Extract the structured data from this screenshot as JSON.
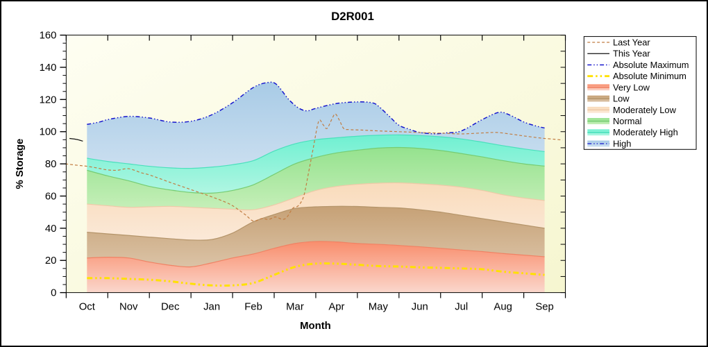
{
  "title": "D2R001",
  "y_axis": {
    "label": "% Storage",
    "ticks": [
      0,
      20,
      40,
      60,
      80,
      100,
      120,
      140,
      160
    ],
    "min": 0,
    "max": 160,
    "minor_step": 5,
    "right_minor_step": 10
  },
  "x_axis": {
    "label": "Month",
    "categories": [
      "Oct",
      "Nov",
      "Dec",
      "Jan",
      "Feb",
      "Mar",
      "Apr",
      "May",
      "Jun",
      "Jul",
      "Aug",
      "Sep"
    ]
  },
  "legend": {
    "items": [
      {
        "label": "Last Year",
        "type": "line",
        "color": "#C17C41",
        "width": 1.2,
        "dash": "4 3"
      },
      {
        "label": "This Year",
        "type": "line",
        "color": "#111111",
        "width": 1.3,
        "dash": ""
      },
      {
        "label": "Absolute Maximum",
        "type": "line",
        "color": "#1414CD",
        "width": 1.5,
        "dash": "6 3 1.5 3 1.5 3"
      },
      {
        "label": "Absolute Minimum",
        "type": "line",
        "color": "#FFE100",
        "width": 3,
        "dash": "8 4 2.5 4 2.5 4"
      },
      {
        "label": "Very Low",
        "type": "band",
        "line_color": "#F08264",
        "fill_top": "#F98D6C",
        "fill_bottom": "#FAD7CC"
      },
      {
        "label": "Low",
        "type": "band",
        "line_color": "#B49469",
        "fill_top": "#C6A176",
        "fill_bottom": "#DBC3A6"
      },
      {
        "label": "Moderately Low",
        "type": "band",
        "line_color": "#EECAA8",
        "fill_top": "#F9DBBB",
        "fill_bottom": "#FBE9D8"
      },
      {
        "label": "Normal",
        "type": "band",
        "line_color": "#76CC72",
        "fill_top": "#95E28E",
        "fill_bottom": "#C6EFB9"
      },
      {
        "label": "Moderately High",
        "type": "band",
        "line_color": "#4AE0BC",
        "fill_top": "#6FF0D1",
        "fill_bottom": "#B0F6E2"
      },
      {
        "label": "High",
        "type": "band-line",
        "line_color": "#1414CD",
        "dash": "6 3 1.5 3 1.5 3",
        "fill_top": "#A8CBE6",
        "fill_bottom": "#CBDFF0"
      }
    ]
  },
  "chart_data": {
    "type": "area",
    "title": "D2R001",
    "xlabel": "Month",
    "ylabel": "% Storage",
    "ylim": [
      0,
      160
    ],
    "x_unit": "month-index, 0=Oct ... 11=Sep (fractions = within-month positions)",
    "grid": false,
    "legend_position": "outside-right",
    "plot_background": {
      "gradient_from": "#FEFEF2",
      "gradient_to": "#F6F6D0"
    },
    "bands": [
      {
        "name": "Very Low",
        "line_color": "#F08264",
        "fill_top": "#F98D6C",
        "fill_bottom": "#FAD7CC",
        "top": [
          [
            0,
            21.5
          ],
          [
            0.5,
            22
          ],
          [
            1,
            21.5
          ],
          [
            1.5,
            19
          ],
          [
            2,
            17
          ],
          [
            2.5,
            16
          ],
          [
            3,
            18.5
          ],
          [
            3.5,
            21.5
          ],
          [
            4,
            24
          ],
          [
            4.5,
            27.5
          ],
          [
            5,
            30.5
          ],
          [
            5.5,
            31.8
          ],
          [
            6,
            31.5
          ],
          [
            6.5,
            30.5
          ],
          [
            7,
            30
          ],
          [
            7.5,
            29.3
          ],
          [
            8,
            28.5
          ],
          [
            8.5,
            27.5
          ],
          [
            9,
            26.5
          ],
          [
            9.5,
            25.5
          ],
          [
            10,
            24.3
          ],
          [
            10.5,
            23.3
          ],
          [
            11,
            22.3
          ]
        ]
      },
      {
        "name": "Low",
        "line_color": "#B49469",
        "fill_top": "#C6A176",
        "fill_bottom": "#DBC3A6",
        "top": [
          [
            0,
            37.5
          ],
          [
            0.5,
            36.5
          ],
          [
            1,
            35.5
          ],
          [
            1.5,
            34.5
          ],
          [
            2,
            33.5
          ],
          [
            2.5,
            32.7
          ],
          [
            3,
            33
          ],
          [
            3.5,
            37
          ],
          [
            4,
            44
          ],
          [
            4.5,
            48.5
          ],
          [
            5,
            52.3
          ],
          [
            5.5,
            53.3
          ],
          [
            6,
            53.6
          ],
          [
            6.5,
            53.5
          ],
          [
            7,
            53
          ],
          [
            7.5,
            52.6
          ],
          [
            8,
            51.5
          ],
          [
            8.5,
            50
          ],
          [
            9,
            48
          ],
          [
            9.5,
            46
          ],
          [
            10,
            44
          ],
          [
            10.5,
            42
          ],
          [
            11,
            40
          ]
        ]
      },
      {
        "name": "Moderately Low",
        "line_color": "#EECAA8",
        "fill_top": "#F9DBBB",
        "fill_bottom": "#FBE9D8",
        "top": [
          [
            0,
            55
          ],
          [
            0.5,
            54
          ],
          [
            1,
            53
          ],
          [
            1.5,
            53.3
          ],
          [
            2,
            53.6
          ],
          [
            2.5,
            53
          ],
          [
            3,
            52.4
          ],
          [
            3.5,
            51.8
          ],
          [
            4,
            51.5
          ],
          [
            4.5,
            54.5
          ],
          [
            5,
            59
          ],
          [
            5.5,
            63.5
          ],
          [
            6,
            66
          ],
          [
            6.5,
            67.3
          ],
          [
            7,
            68
          ],
          [
            7.5,
            68.2
          ],
          [
            8,
            67.6
          ],
          [
            8.5,
            66.8
          ],
          [
            9,
            65.5
          ],
          [
            9.5,
            63.5
          ],
          [
            10,
            60.8
          ],
          [
            10.5,
            58.8
          ],
          [
            11,
            57.2
          ]
        ]
      },
      {
        "name": "Normal",
        "line_color": "#76CC72",
        "fill_top": "#95E28E",
        "fill_bottom": "#C6EFB9",
        "top": [
          [
            0,
            76
          ],
          [
            0.5,
            72.5
          ],
          [
            1,
            69.5
          ],
          [
            1.5,
            66
          ],
          [
            2,
            63.8
          ],
          [
            2.5,
            62.2
          ],
          [
            3,
            61.8
          ],
          [
            3.5,
            63.5
          ],
          [
            4,
            67
          ],
          [
            4.5,
            73.5
          ],
          [
            5,
            80
          ],
          [
            5.5,
            84
          ],
          [
            6,
            86.8
          ],
          [
            6.5,
            88.5
          ],
          [
            7,
            89.8
          ],
          [
            7.5,
            90.2
          ],
          [
            8,
            89.6
          ],
          [
            8.5,
            88.3
          ],
          [
            9,
            86.4
          ],
          [
            9.5,
            84.3
          ],
          [
            10,
            82
          ],
          [
            10.5,
            80
          ],
          [
            11,
            78.6
          ]
        ]
      },
      {
        "name": "Moderately High",
        "line_color": "#4AE0BC",
        "fill_top": "#6FF0D1",
        "fill_bottom": "#B0F6E2",
        "top": [
          [
            0,
            83.5
          ],
          [
            0.5,
            81.5
          ],
          [
            1,
            80
          ],
          [
            1.5,
            78.5
          ],
          [
            2,
            77.5
          ],
          [
            2.5,
            77.2
          ],
          [
            3,
            78
          ],
          [
            3.5,
            79.5
          ],
          [
            4,
            82
          ],
          [
            4.5,
            88
          ],
          [
            5,
            92.5
          ],
          [
            5.5,
            95
          ],
          [
            6,
            96.2
          ],
          [
            6.5,
            97.2
          ],
          [
            7,
            97.8
          ],
          [
            7.5,
            98
          ],
          [
            8,
            97.6
          ],
          [
            8.5,
            96.8
          ],
          [
            9,
            95.5
          ],
          [
            9.5,
            93.5
          ],
          [
            10,
            91.3
          ],
          [
            10.5,
            89.3
          ],
          [
            11,
            87.6
          ]
        ]
      },
      {
        "name": "High",
        "line_color": "none",
        "fill_top": "#A8CBE6",
        "fill_bottom": "#CBDFF0",
        "top": [
          [
            0,
            104.5
          ],
          [
            0.3,
            106
          ],
          [
            0.5,
            107.5
          ],
          [
            1,
            109.5
          ],
          [
            1.5,
            108.5
          ],
          [
            2,
            106
          ],
          [
            2.5,
            106.5
          ],
          [
            3,
            110.5
          ],
          [
            3.5,
            118
          ],
          [
            4,
            127.5
          ],
          [
            4.33,
            130.5
          ],
          [
            4.55,
            129.5
          ],
          [
            4.85,
            120
          ],
          [
            5.1,
            114.5
          ],
          [
            5.3,
            113
          ],
          [
            5.5,
            114.5
          ],
          [
            6,
            117.5
          ],
          [
            6.5,
            118.5
          ],
          [
            6.85,
            118
          ],
          [
            7,
            116
          ],
          [
            7.25,
            110
          ],
          [
            7.5,
            104
          ],
          [
            7.75,
            101.5
          ],
          [
            8,
            99.5
          ],
          [
            8.35,
            98.7
          ],
          [
            8.65,
            99.3
          ],
          [
            9,
            100.5
          ],
          [
            9.5,
            107.5
          ],
          [
            9.9,
            112
          ],
          [
            10.15,
            110.5
          ],
          [
            10.5,
            106
          ],
          [
            10.8,
            103.5
          ],
          [
            11,
            102.3
          ]
        ]
      }
    ],
    "lines": [
      {
        "name": "Absolute Maximum",
        "color": "#1414CD",
        "width": 1.5,
        "dash": "6 3 1.5 3 1.5 3",
        "points": [
          [
            0,
            104.5
          ],
          [
            0.3,
            106
          ],
          [
            0.5,
            107.5
          ],
          [
            1,
            109.5
          ],
          [
            1.5,
            108.5
          ],
          [
            2,
            106
          ],
          [
            2.5,
            106.5
          ],
          [
            3,
            110.5
          ],
          [
            3.5,
            118
          ],
          [
            4,
            127.5
          ],
          [
            4.33,
            130.5
          ],
          [
            4.55,
            129.5
          ],
          [
            4.85,
            120
          ],
          [
            5.1,
            114.5
          ],
          [
            5.3,
            113
          ],
          [
            5.5,
            114.5
          ],
          [
            6,
            117.5
          ],
          [
            6.5,
            118.5
          ],
          [
            6.85,
            118
          ],
          [
            7,
            116
          ],
          [
            7.25,
            110
          ],
          [
            7.5,
            104
          ],
          [
            7.75,
            101.5
          ],
          [
            8,
            99.5
          ],
          [
            8.35,
            98.7
          ],
          [
            8.65,
            99.3
          ],
          [
            9,
            100.5
          ],
          [
            9.5,
            107.5
          ],
          [
            9.9,
            112
          ],
          [
            10.15,
            110.5
          ],
          [
            10.5,
            106
          ],
          [
            10.8,
            103.5
          ],
          [
            11,
            102.3
          ]
        ]
      },
      {
        "name": "Absolute Minimum",
        "color": "#FFE100",
        "width": 3,
        "dash": "8 4 2.5 4 2.5 4",
        "points": [
          [
            0,
            9
          ],
          [
            0.5,
            9
          ],
          [
            1,
            8.5
          ],
          [
            1.5,
            8
          ],
          [
            2,
            7
          ],
          [
            2.5,
            5.5
          ],
          [
            3,
            4.5
          ],
          [
            3.5,
            4.5
          ],
          [
            4,
            6
          ],
          [
            4.5,
            11
          ],
          [
            5,
            16
          ],
          [
            5.5,
            18
          ],
          [
            6,
            18
          ],
          [
            6.5,
            17.3
          ],
          [
            7,
            16.5
          ],
          [
            7.5,
            16.2
          ],
          [
            8,
            15.7
          ],
          [
            8.5,
            15.4
          ],
          [
            9,
            15
          ],
          [
            9.5,
            14.5
          ],
          [
            10,
            13
          ],
          [
            10.5,
            12
          ],
          [
            11,
            11
          ]
        ]
      },
      {
        "name": "Last Year",
        "color": "#C17C41",
        "width": 1.2,
        "dash": "4 3",
        "points": [
          [
            -0.52,
            80
          ],
          [
            -0.19,
            79
          ],
          [
            0,
            78.5
          ],
          [
            0.23,
            77.5
          ],
          [
            0.48,
            76.3
          ],
          [
            0.72,
            76
          ],
          [
            1,
            77
          ],
          [
            1.3,
            74.5
          ],
          [
            1.52,
            73
          ],
          [
            2,
            68.5
          ],
          [
            2.5,
            64
          ],
          [
            3,
            59.5
          ],
          [
            3.3,
            56.5
          ],
          [
            3.5,
            54
          ],
          [
            3.8,
            48.5
          ],
          [
            4,
            44.5
          ],
          [
            4.2,
            46
          ],
          [
            4.37,
            45.5
          ],
          [
            4.53,
            47
          ],
          [
            4.7,
            45.5
          ],
          [
            4.81,
            47
          ],
          [
            4.95,
            52.5
          ],
          [
            5.08,
            54
          ],
          [
            5.21,
            60
          ],
          [
            5.33,
            75
          ],
          [
            5.44,
            90
          ],
          [
            5.57,
            106.5
          ],
          [
            5.67,
            104.5
          ],
          [
            5.77,
            102
          ],
          [
            5.89,
            108
          ],
          [
            5.97,
            111
          ],
          [
            6.07,
            107
          ],
          [
            6.17,
            102
          ],
          [
            6.3,
            101.3
          ],
          [
            6.6,
            101
          ],
          [
            7,
            100.5
          ],
          [
            7.5,
            100
          ],
          [
            8,
            99.5
          ],
          [
            8.6,
            99
          ],
          [
            9,
            98.6
          ],
          [
            9.5,
            99.2
          ],
          [
            9.86,
            99.5
          ],
          [
            10.24,
            98.3
          ],
          [
            10.52,
            97.3
          ],
          [
            10.82,
            96.3
          ],
          [
            11,
            95.8
          ],
          [
            11.23,
            95.3
          ],
          [
            11.43,
            94.8
          ]
        ]
      },
      {
        "name": "This Year",
        "color": "#111111",
        "width": 1.3,
        "dash": "",
        "points": [
          [
            -0.42,
            95.8
          ],
          [
            -0.25,
            95.2
          ],
          [
            -0.1,
            94.1
          ]
        ]
      }
    ]
  }
}
